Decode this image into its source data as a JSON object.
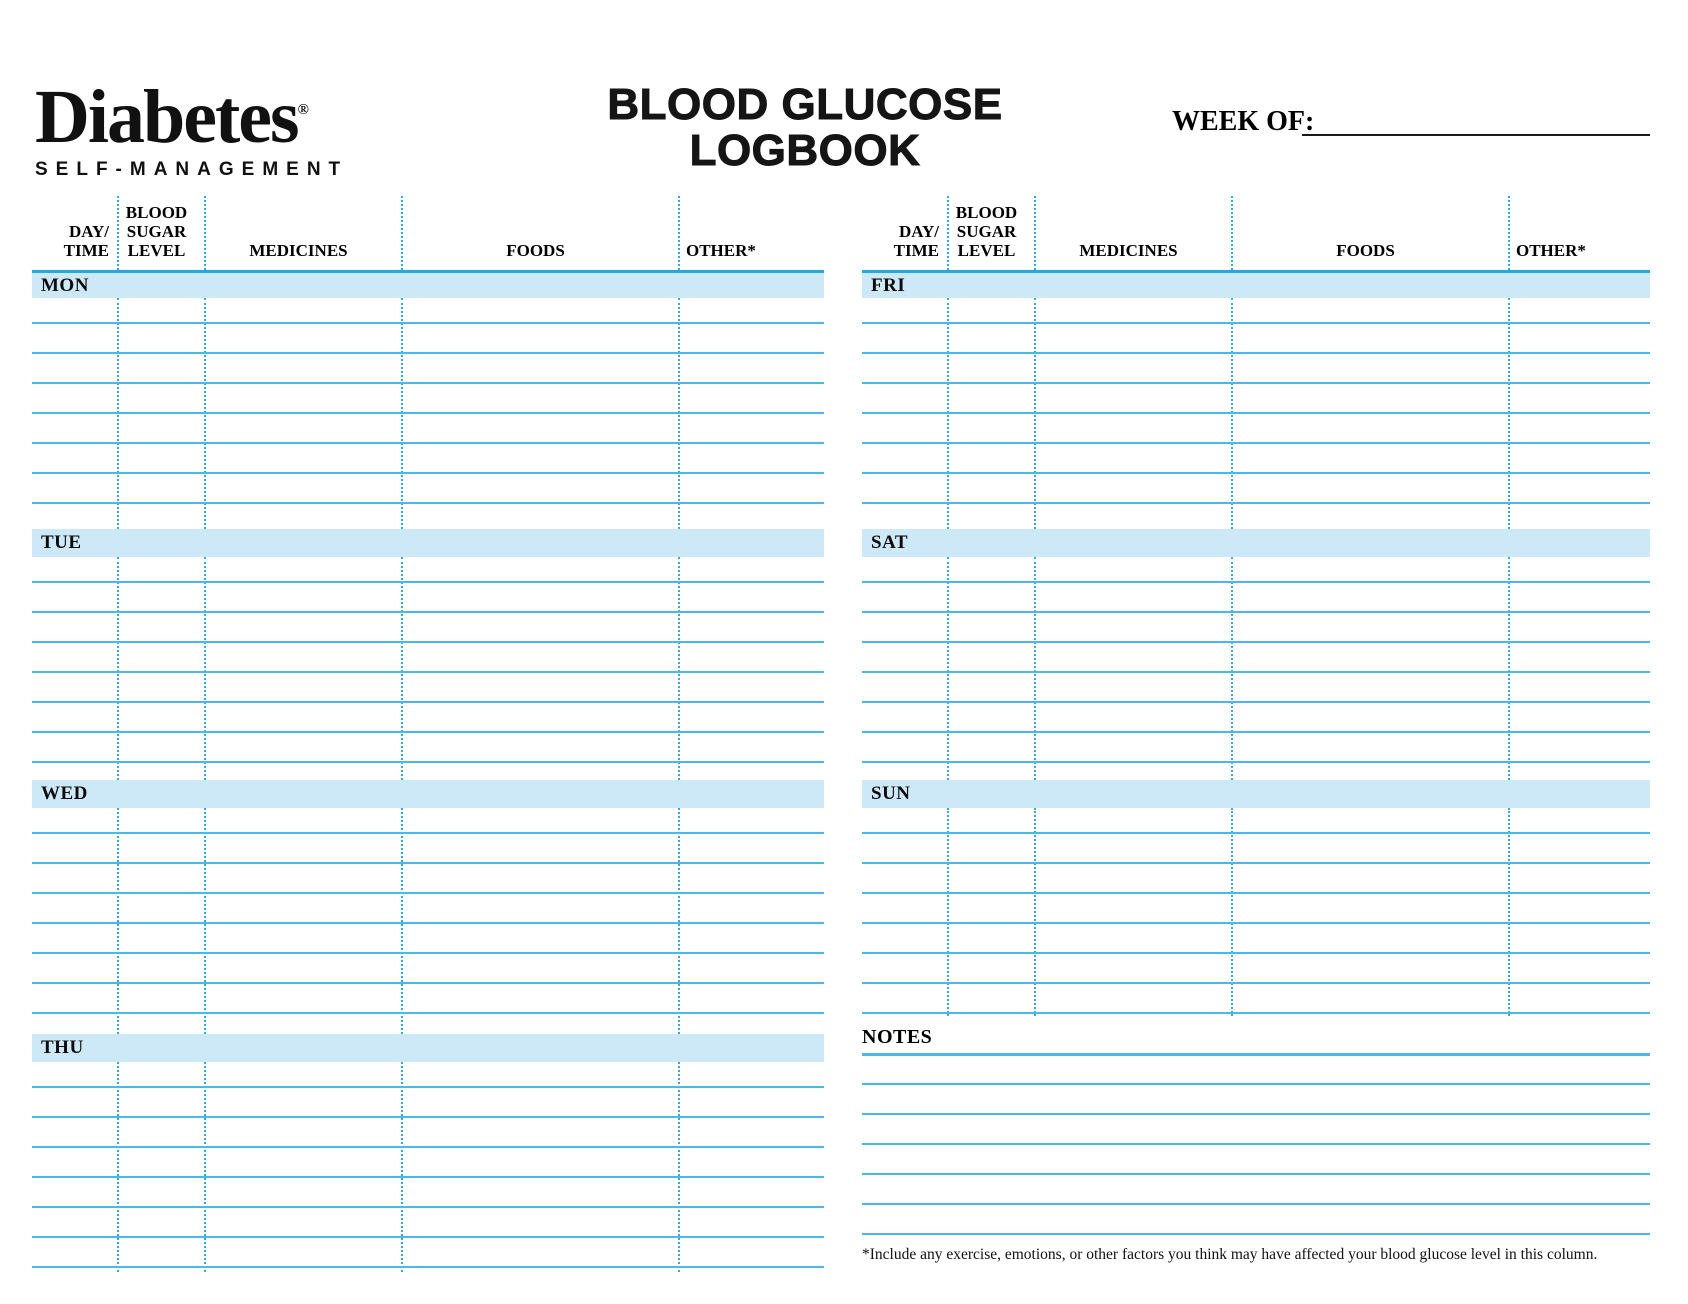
{
  "logo": {
    "name": "Diabetes",
    "registered_mark": "®",
    "tagline": "SELF-MANAGEMENT"
  },
  "title": {
    "line1": "BLOOD GLUCOSE",
    "line2": "LOGBOOK"
  },
  "week_of": {
    "label": "WEEK OF:"
  },
  "column_headers": [
    {
      "id": "day-time",
      "lines": [
        "DAY/",
        "TIME"
      ]
    },
    {
      "id": "blood-sugar-level",
      "lines": [
        "BLOOD",
        "SUGAR",
        "LEVEL"
      ]
    },
    {
      "id": "medicines",
      "lines": [
        "MEDICINES"
      ]
    },
    {
      "id": "foods",
      "lines": [
        "FOODS"
      ]
    },
    {
      "id": "other",
      "lines": [
        "OTHER*"
      ]
    }
  ],
  "tables": {
    "left": {
      "days": [
        "MON",
        "TUE",
        "WED",
        "THU"
      ]
    },
    "right": {
      "days": [
        "FRI",
        "SAT",
        "SUN"
      ]
    }
  },
  "notes": {
    "label": "NOTES"
  },
  "footnote": "*Include any exercise, emotions, or other factors you think may have affected your blood glucose level in this column.",
  "colors": {
    "row_line": "#4ab8e8",
    "dotted_line": "#2fadde",
    "day_bar_fill": "#cde9f8",
    "day_bar_top_border": "#23a9e0",
    "text": "#000000"
  }
}
